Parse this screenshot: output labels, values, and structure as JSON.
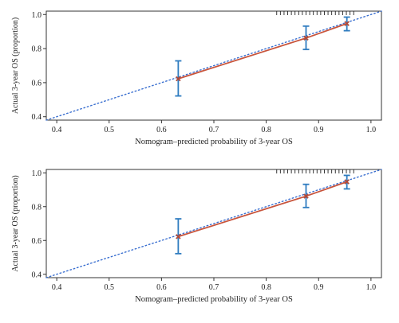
{
  "chart_data": [
    {
      "type": "calibration",
      "xlabel": "Nomogram–predicted probability of 3-year OS",
      "ylabel": "Actual 3-year OS (proportion)",
      "xlim": [
        0.38,
        1.02
      ],
      "ylim": [
        0.38,
        1.02
      ],
      "xticks": [
        "0.4",
        "0.5",
        "0.6",
        "0.7",
        "0.8",
        "0.9",
        "1.0"
      ],
      "yticks": [
        "0.4",
        "0.6",
        "0.8",
        "1.0"
      ],
      "reference_line": {
        "from": 0.38,
        "to": 1.02
      },
      "points": [
        {
          "x": 0.632,
          "y": 0.623,
          "lower": 0.522,
          "upper": 0.728
        },
        {
          "x": 0.876,
          "y": 0.862,
          "lower": 0.795,
          "upper": 0.932
        },
        {
          "x": 0.954,
          "y": 0.947,
          "lower": 0.905,
          "upper": 0.985
        }
      ],
      "rug_x": [
        0.82,
        0.827,
        0.834,
        0.841,
        0.848,
        0.855,
        0.862,
        0.869,
        0.876,
        0.883,
        0.89,
        0.897,
        0.904,
        0.911,
        0.918,
        0.925,
        0.932,
        0.939,
        0.946,
        0.953,
        0.96,
        0.967
      ],
      "colors": {
        "line": "#c8553d",
        "marker": "#b04a3a",
        "errorbar": "#2f7cc0",
        "reference": "#3a6fd0"
      }
    },
    {
      "type": "calibration",
      "xlabel": "Nomogram–predicted probability of 3-year OS",
      "ylabel": "Actual 3-year OS (proportion)",
      "xlim": [
        0.38,
        1.02
      ],
      "ylim": [
        0.38,
        1.02
      ],
      "xticks": [
        "0.4",
        "0.5",
        "0.6",
        "0.7",
        "0.8",
        "0.9",
        "1.0"
      ],
      "yticks": [
        "0.4",
        "0.6",
        "0.8",
        "1.0"
      ],
      "reference_line": {
        "from": 0.38,
        "to": 1.02
      },
      "points": [
        {
          "x": 0.632,
          "y": 0.623,
          "lower": 0.522,
          "upper": 0.728
        },
        {
          "x": 0.876,
          "y": 0.862,
          "lower": 0.795,
          "upper": 0.932
        },
        {
          "x": 0.954,
          "y": 0.947,
          "lower": 0.905,
          "upper": 0.985
        }
      ],
      "rug_x": [
        0.82,
        0.827,
        0.834,
        0.841,
        0.848,
        0.855,
        0.862,
        0.869,
        0.876,
        0.883,
        0.89,
        0.897,
        0.904,
        0.911,
        0.918,
        0.925,
        0.932,
        0.939,
        0.946,
        0.953,
        0.96,
        0.967
      ],
      "colors": {
        "line": "#c8553d",
        "marker": "#b04a3a",
        "errorbar": "#2f7cc0",
        "reference": "#3a6fd0"
      }
    }
  ]
}
